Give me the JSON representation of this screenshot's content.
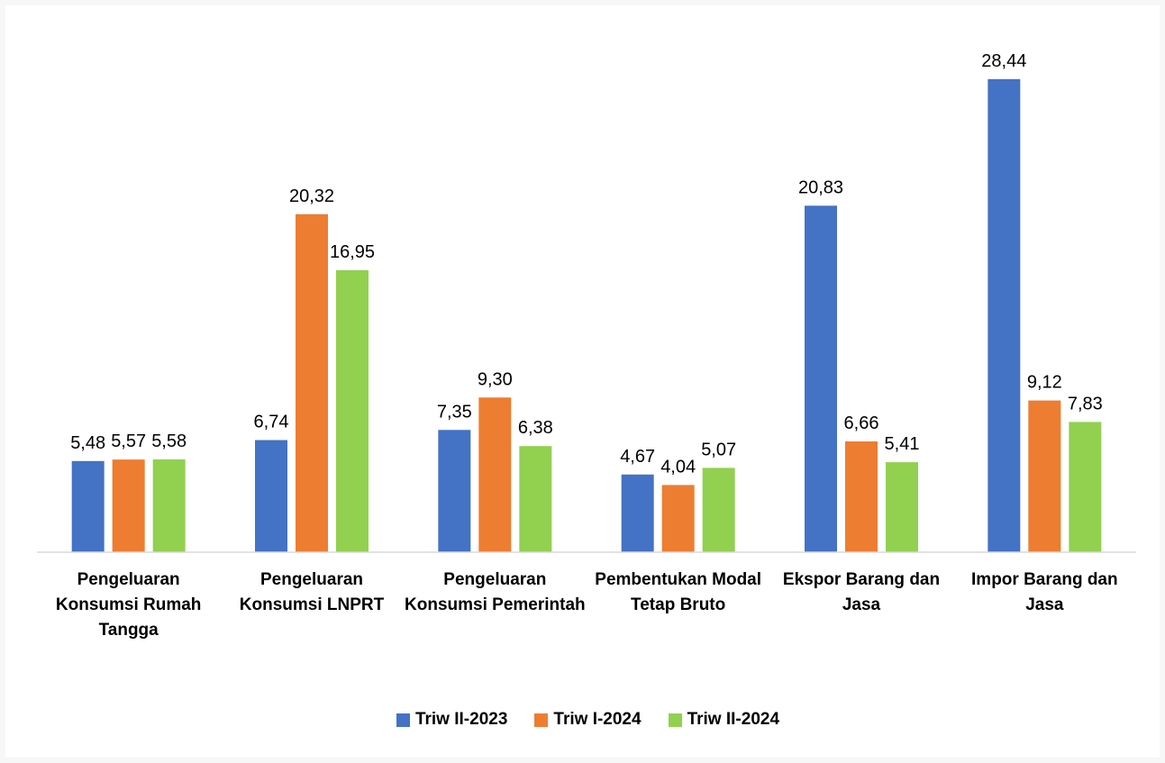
{
  "chart_data": {
    "type": "bar",
    "categories": [
      "Pengeluaran Konsumsi Rumah Tangga",
      "Pengeluaran Konsumsi LNPRT",
      "Pengeluaran Konsumsi Pemerintah",
      "Pembentukan Modal Tetap Bruto",
      "Ekspor Barang dan Jasa",
      "Impor Barang dan Jasa"
    ],
    "series": [
      {
        "name": "Triw II-2023",
        "color": "#4472c4",
        "values": [
          5.48,
          6.74,
          7.35,
          4.67,
          20.83,
          28.44
        ],
        "value_labels": [
          "5,48",
          "6,74",
          "7,35",
          "4,67",
          "20,83",
          "28,44"
        ]
      },
      {
        "name": "Triw I-2024",
        "color": "#ed7d31",
        "values": [
          5.57,
          20.32,
          9.3,
          4.04,
          6.66,
          9.12
        ],
        "value_labels": [
          "5,57",
          "20,32",
          "9,30",
          "4,04",
          "6,66",
          "9,12"
        ]
      },
      {
        "name": "Triw II-2024",
        "color": "#92d050",
        "values": [
          5.58,
          16.95,
          6.38,
          5.07,
          5.41,
          7.83
        ],
        "value_labels": [
          "5,58",
          "16,95",
          "6,38",
          "5,07",
          "5,41",
          "7,83"
        ]
      }
    ],
    "ylim": [
      0,
      30
    ],
    "legend": "bottom"
  }
}
